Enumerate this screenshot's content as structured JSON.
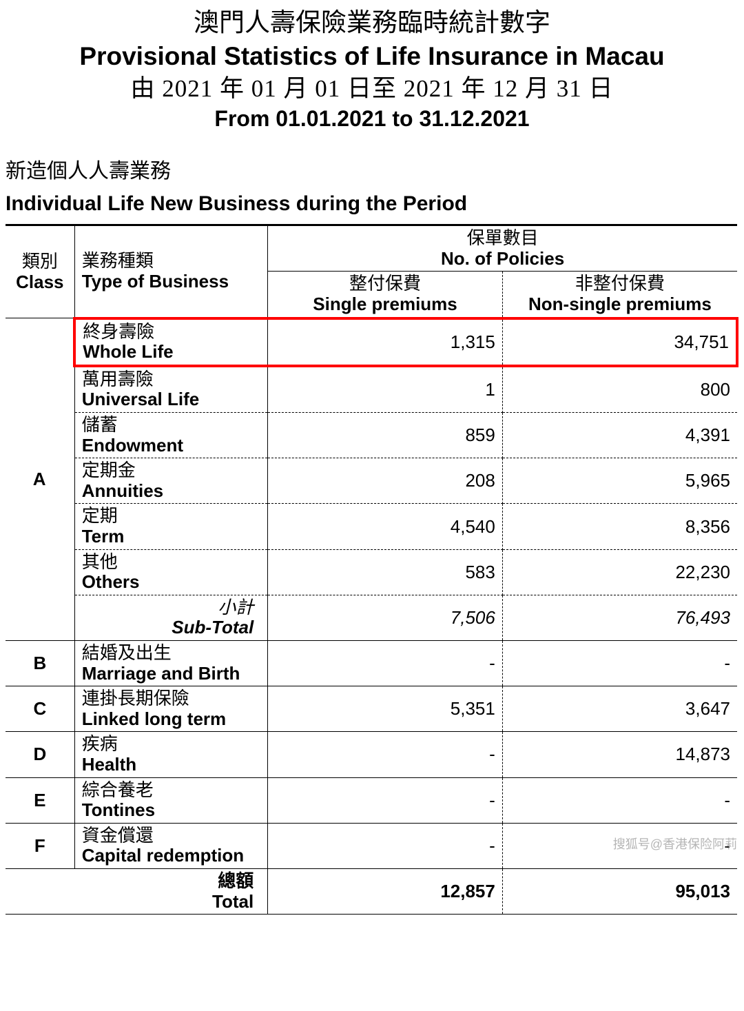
{
  "title": {
    "zh": "澳門人壽保險業務臨時統計數字",
    "en": "Provisional Statistics of Life Insurance in Macau",
    "date_zh": "由 2021 年 01 月 01 日至 2021 年 12 月 31 日",
    "date_en": "From 01.01.2021 to 31.12.2021"
  },
  "section": {
    "zh": "新造個人人壽業務",
    "en": "Individual Life New Business during the Period"
  },
  "headers": {
    "class_zh": "類別",
    "class_en": "Class",
    "type_zh": "業務種類",
    "type_en": "Type of Business",
    "policies_zh": "保單數目",
    "policies_en": "No. of Policies",
    "sp_zh": "整付保費",
    "sp_en": "Single premiums",
    "nsp_zh": "非整付保費",
    "nsp_en": "Non-single premiums"
  },
  "classA": {
    "label": "A",
    "rows": [
      {
        "zh": "終身壽險",
        "en": "Whole Life",
        "sp": "1,315",
        "nsp": "34,751",
        "highlight": true
      },
      {
        "zh": "萬用壽險",
        "en": "Universal Life",
        "sp": "1",
        "nsp": "800"
      },
      {
        "zh": "儲蓄",
        "en": "Endowment",
        "sp": "859",
        "nsp": "4,391"
      },
      {
        "zh": "定期金",
        "en": "Annuities",
        "sp": "208",
        "nsp": "5,965"
      },
      {
        "zh": "定期",
        "en": "Term",
        "sp": "4,540",
        "nsp": "8,356"
      },
      {
        "zh": "其他",
        "en": "Others",
        "sp": "583",
        "nsp": "22,230"
      }
    ],
    "subtotal": {
      "zh": "小計",
      "en": "Sub-Total",
      "sp": "7,506",
      "nsp": "76,493"
    }
  },
  "others": [
    {
      "cls": "B",
      "zh": "結婚及出生",
      "en": "Marriage and Birth",
      "sp": "-",
      "nsp": "-"
    },
    {
      "cls": "C",
      "zh": "連掛長期保險",
      "en": "Linked long term",
      "sp": "5,351",
      "nsp": "3,647"
    },
    {
      "cls": "D",
      "zh": "疾病",
      "en": "Health",
      "sp": "-",
      "nsp": "14,873"
    },
    {
      "cls": "E",
      "zh": "綜合養老",
      "en": "Tontines",
      "sp": "-",
      "nsp": "-"
    },
    {
      "cls": "F",
      "zh": "資金償還",
      "en": "Capital redemption",
      "sp": "-",
      "nsp": "-"
    }
  ],
  "total": {
    "zh": "總額",
    "en": "Total",
    "sp": "12,857",
    "nsp": "95,013"
  },
  "watermark": "搜狐号@香港保险阿莉",
  "style": {
    "highlight_color": "#ff0000",
    "background_color": "#ffffff",
    "text_color": "#000000",
    "font_serif": "Times New Roman",
    "font_sans": "Arial"
  }
}
